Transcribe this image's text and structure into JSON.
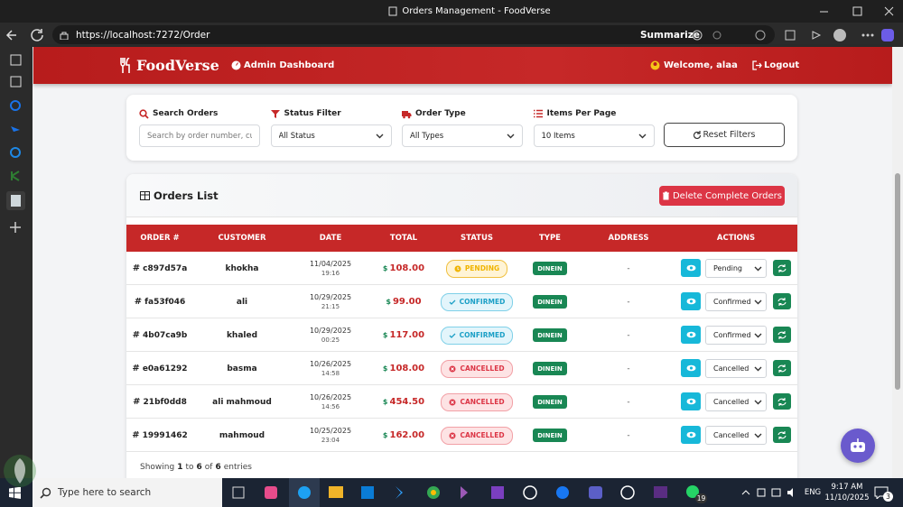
{
  "window": {
    "title": "Orders Management - FoodVerse"
  },
  "browser": {
    "url": "https://localhost:7272/Order",
    "summarize": "Summarize"
  },
  "navbar": {
    "brand": "FoodVerse",
    "dashboard": "Admin Dashboard",
    "welcome": "Welcome, alaa",
    "logout": "Logout"
  },
  "filters": {
    "fields": [
      {
        "label": "Search Orders",
        "value": "Search by order number, cu"
      },
      {
        "label": "Status Filter",
        "value": "All Status"
      },
      {
        "label": "Order Type",
        "value": "All Types"
      },
      {
        "label": "Items Per Page",
        "value": "10 Items"
      }
    ],
    "reset": "Reset Filters"
  },
  "orders": {
    "title": "Orders List",
    "delete_button": "Delete Complete Orders",
    "columns": [
      "ORDER #",
      "CUSTOMER",
      "DATE",
      "TOTAL",
      "STATUS",
      "TYPE",
      "ADDRESS",
      "ACTIONS"
    ],
    "id_prefix": "#",
    "currency": "$",
    "rows": [
      {
        "id": "c897d57a",
        "customer": "khokha",
        "date": "11/04/2025",
        "time": "19:16",
        "total": "108.00",
        "status": "PENDING",
        "type": "DINEIN",
        "address": "-",
        "action_status": "Pending"
      },
      {
        "id": "fa53f046",
        "customer": "ali",
        "date": "10/29/2025",
        "time": "21:15",
        "total": "99.00",
        "status": "CONFIRMED",
        "type": "DINEIN",
        "address": "-",
        "action_status": "Confirmed"
      },
      {
        "id": "4b07ca9b",
        "customer": "khaled",
        "date": "10/29/2025",
        "time": "00:25",
        "total": "117.00",
        "status": "CONFIRMED",
        "type": "DINEIN",
        "address": "-",
        "action_status": "Confirmed"
      },
      {
        "id": "e0a61292",
        "customer": "basma",
        "date": "10/26/2025",
        "time": "14:58",
        "total": "108.00",
        "status": "CANCELLED",
        "type": "DINEIN",
        "address": "-",
        "action_status": "Cancelled"
      },
      {
        "id": "21bf0dd8",
        "customer": "ali mahmoud",
        "date": "10/26/2025",
        "time": "14:56",
        "total": "454.50",
        "status": "CANCELLED",
        "type": "DINEIN",
        "address": "-",
        "action_status": "Cancelled"
      },
      {
        "id": "19991462",
        "customer": "mahmoud",
        "date": "10/25/2025",
        "time": "23:04",
        "total": "162.00",
        "status": "CANCELLED",
        "type": "DINEIN",
        "address": "-",
        "action_status": "Cancelled"
      }
    ],
    "footer": [
      "Showing",
      "1",
      "to",
      "6",
      "of",
      "6",
      "entries"
    ]
  },
  "taskbar": {
    "search": "Type here to search",
    "badge": "19",
    "language": "ENG",
    "time": "9:17 AM",
    "date": "11/10/2025",
    "notifications": "3"
  }
}
